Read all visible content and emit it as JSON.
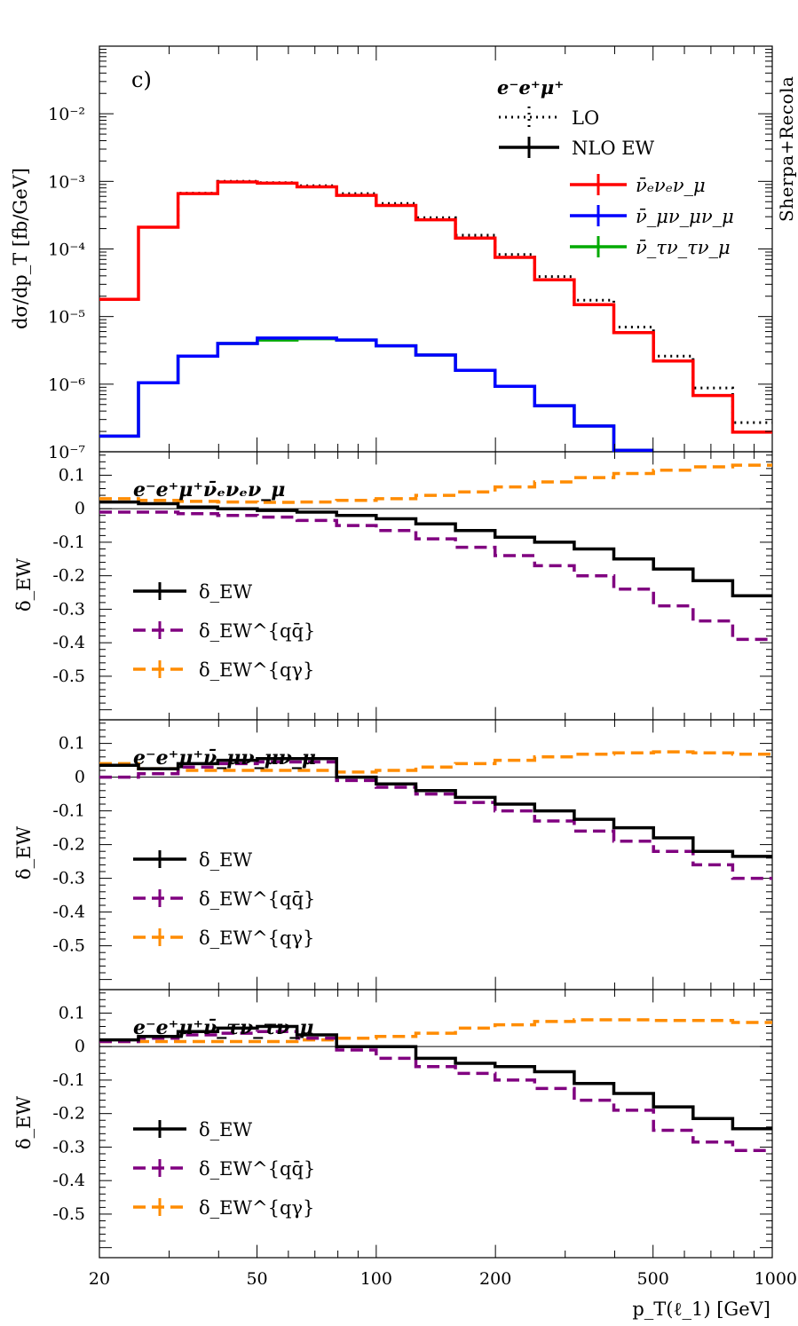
{
  "chart_data": {
    "type": "line",
    "credit": "Sherpa+Recola",
    "x_axis": {
      "label": "p_T(ℓ_1) [GeV]",
      "scale": "log",
      "range": [
        20,
        1000
      ],
      "ticks": [
        "20",
        "50",
        "100",
        "200",
        "500",
        "1000"
      ],
      "tick_values": [
        20,
        50,
        100,
        200,
        500,
        1000
      ]
    },
    "colors": {
      "e_channel": "#ff0000",
      "mu_channel": "#0000ff",
      "tau_channel": "#00aa00",
      "lo": "#000000",
      "nlo_ew": "#000000",
      "delta_ew": "#000000",
      "delta_qqbar": "#800080",
      "delta_qgamma": "#ff8c00"
    },
    "bin_edges": [
      20,
      25.1,
      31.6,
      39.8,
      50.1,
      63.1,
      79.4,
      100,
      125.9,
      158.5,
      199.5,
      251.2,
      316.2,
      398.1,
      501.2,
      631,
      794.3,
      1000
    ],
    "main": {
      "label": "c)",
      "ylabel": "dσ/dp_T [fb/GeV]",
      "yscale": "log",
      "ylim": [
        1e-07,
        0.1
      ],
      "yticks": [
        "10⁻²",
        "10⁻³",
        "10⁻⁴",
        "10⁻⁵",
        "10⁻⁶",
        "10⁻⁷"
      ],
      "ytick_values": [
        0.01,
        0.001,
        0.0001,
        1e-05,
        1e-06,
        1e-07
      ],
      "legend": {
        "title": "e⁻e⁺μ⁺",
        "entries": [
          "LO",
          "NLO EW",
          "ν̄ₑνₑν_μ",
          "ν̄_μν_μν_μ",
          "ν̄_τν_τν_μ"
        ]
      },
      "series": [
        {
          "name": "ν̄ₑνₑν_μ NLO EW",
          "values": [
            1.8e-05,
            0.00021,
            0.00066,
            0.00098,
            0.00094,
            0.00083,
            0.00062,
            0.00044,
            0.00027,
            0.000145,
            7.5e-05,
            3.5e-05,
            1.5e-05,
            5.8e-06,
            2.2e-06,
            6.8e-07,
            1.95e-07
          ]
        },
        {
          "name": "ν̄ₑνₑν_μ LO",
          "values": [
            1.8e-05,
            0.00021,
            0.00067,
            0.001,
            0.00096,
            0.00086,
            0.00066,
            0.00047,
            0.00029,
            0.00016,
            8.3e-05,
            3.9e-05,
            1.75e-05,
            7e-06,
            2.6e-06,
            8.8e-07,
            2.7e-07
          ]
        },
        {
          "name": "ν̄_μν_μν_μ NLO EW",
          "values": [
            1.7e-07,
            1.05e-06,
            2.6e-06,
            4e-06,
            4.8e-06,
            4.8e-06,
            4.5e-06,
            3.7e-06,
            2.7e-06,
            1.6e-06,
            9.3e-07,
            4.8e-07,
            2.4e-07,
            1.05e-07
          ]
        },
        {
          "name": "ν̄_τν_τν_μ NLO EW",
          "values": [
            1.7e-07,
            1.05e-06,
            2.6e-06,
            4e-06,
            4.5e-06,
            4.7e-06,
            4.5e-06,
            3.7e-06,
            2.7e-06,
            1.6e-06,
            9.3e-07,
            4.8e-07,
            2.4e-07,
            1.05e-07
          ]
        }
      ]
    },
    "ratio_panels": [
      {
        "title": "e⁻e⁺μ⁺ν̄ₑνₑν_μ",
        "ylabel": "δ_EW",
        "ylim": [
          -0.63,
          0.17
        ],
        "yticks": [
          "0.1",
          "0",
          "-0.1",
          "-0.2",
          "-0.3",
          "-0.4",
          "-0.5"
        ],
        "ytick_values": [
          0.1,
          0,
          -0.1,
          -0.2,
          -0.3,
          -0.4,
          -0.5
        ],
        "legend": [
          "δ_EW",
          "δ_EW^{qq̄}",
          "δ_EW^{qγ}"
        ],
        "series": [
          {
            "name": "δ_EW",
            "values": [
              0.02,
              0.015,
              0.005,
              0.0,
              -0.005,
              -0.01,
              -0.02,
              -0.03,
              -0.045,
              -0.065,
              -0.085,
              -0.1,
              -0.12,
              -0.15,
              -0.18,
              -0.215,
              -0.26
            ]
          },
          {
            "name": "δ_EW^{qq̄}",
            "values": [
              -0.01,
              -0.01,
              -0.015,
              -0.02,
              -0.025,
              -0.035,
              -0.05,
              -0.065,
              -0.09,
              -0.115,
              -0.14,
              -0.17,
              -0.2,
              -0.24,
              -0.29,
              -0.335,
              -0.39
            ]
          },
          {
            "name": "δ_EW^{qγ}",
            "values": [
              0.03,
              0.025,
              0.022,
              0.02,
              0.019,
              0.02,
              0.025,
              0.03,
              0.04,
              0.05,
              0.065,
              0.08,
              0.093,
              0.105,
              0.115,
              0.125,
              0.13
            ]
          }
        ]
      },
      {
        "title": "e⁻e⁺μ⁺ν̄_μν_μν_μ",
        "ylabel": "δ_EW",
        "ylim": [
          -0.63,
          0.17
        ],
        "yticks": [
          "0.1",
          "0",
          "-0.1",
          "-0.2",
          "-0.3",
          "-0.4",
          "-0.5"
        ],
        "ytick_values": [
          0.1,
          0,
          -0.1,
          -0.2,
          -0.3,
          -0.4,
          -0.5
        ],
        "legend": [
          "δ_EW",
          "δ_EW^{qq̄}",
          "δ_EW^{qγ}"
        ],
        "series": [
          {
            "name": "δ_EW",
            "values": [
              0.035,
              0.025,
              0.04,
              0.05,
              0.055,
              0.055,
              0.0,
              -0.02,
              -0.04,
              -0.06,
              -0.08,
              -0.1,
              -0.125,
              -0.15,
              -0.18,
              -0.22,
              -0.235
            ]
          },
          {
            "name": "δ_EW^{qq̄}",
            "values": [
              0.0,
              0.01,
              0.03,
              0.04,
              0.045,
              0.045,
              -0.01,
              -0.03,
              -0.05,
              -0.075,
              -0.1,
              -0.13,
              -0.16,
              -0.19,
              -0.22,
              -0.26,
              -0.3
            ]
          },
          {
            "name": "δ_EW^{qγ}",
            "values": [
              0.04,
              0.025,
              0.02,
              0.02,
              0.02,
              0.02,
              0.015,
              0.02,
              0.03,
              0.04,
              0.05,
              0.06,
              0.068,
              0.072,
              0.075,
              0.072,
              0.068
            ]
          }
        ]
      },
      {
        "title": "e⁻e⁺μ⁺ν̄_τν_τν_μ",
        "ylabel": "δ_EW",
        "ylim": [
          -0.63,
          0.17
        ],
        "yticks": [
          "0.1",
          "0",
          "-0.1",
          "-0.2",
          "-0.3",
          "-0.4",
          "-0.5"
        ],
        "ytick_values": [
          0.1,
          0,
          -0.1,
          -0.2,
          -0.3,
          -0.4,
          -0.5
        ],
        "legend": [
          "δ_EW",
          "δ_EW^{qq̄}",
          "δ_EW^{qγ}"
        ],
        "series": [
          {
            "name": "δ_EW",
            "values": [
              0.02,
              0.03,
              0.045,
              0.055,
              0.06,
              0.035,
              0.0,
              0.0,
              -0.035,
              -0.05,
              -0.06,
              -0.075,
              -0.11,
              -0.14,
              -0.18,
              -0.215,
              -0.245
            ]
          },
          {
            "name": "δ_EW^{qq̄}",
            "values": [
              0.015,
              0.025,
              0.035,
              0.04,
              0.045,
              0.025,
              -0.01,
              -0.035,
              -0.06,
              -0.08,
              -0.1,
              -0.125,
              -0.16,
              -0.19,
              -0.25,
              -0.285,
              -0.31
            ]
          },
          {
            "name": "δ_EW^{qγ}",
            "values": [
              0.015,
              0.015,
              0.015,
              0.015,
              0.015,
              0.02,
              0.025,
              0.03,
              0.04,
              0.055,
              0.065,
              0.075,
              0.08,
              0.08,
              0.078,
              0.078,
              0.072
            ]
          }
        ]
      }
    ]
  }
}
